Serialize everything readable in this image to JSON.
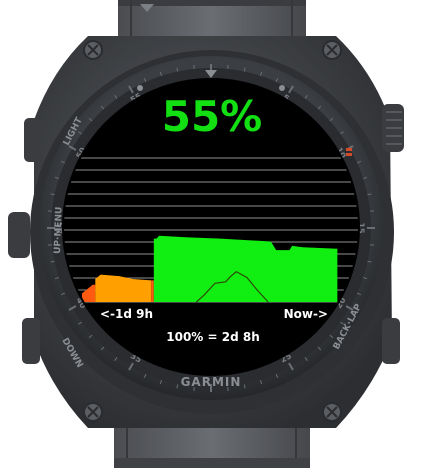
{
  "watch": {
    "brand": "GARMIN",
    "button_labels": {
      "light": "LIGHT",
      "up_menu": "UP·MENU",
      "down": "DOWN",
      "back_lap": "BACK·LAP"
    },
    "bezel_numbers": [
      "5",
      "10",
      "15",
      "20",
      "25",
      "35",
      "40",
      "45",
      "50",
      "55"
    ]
  },
  "screen": {
    "battery_percent_text": "55%",
    "percent_color": "#12e012",
    "left_time_label": "<-1d 9h",
    "right_time_label": "Now->",
    "scale_text": "100% = 2d 8h"
  },
  "chart_data": {
    "type": "area",
    "x_label_left": "<-1d 9h",
    "x_label_right": "Now->",
    "ylim": [
      0,
      100
    ],
    "colors": {
      "low": "#ff5a10",
      "mid": "#ffa000",
      "high": "#11ee11",
      "activity_line": "#2a4a00"
    },
    "grid": true,
    "segments": [
      {
        "color": "low",
        "points": [
          [
            0,
            6
          ],
          [
            0.04,
            12
          ],
          [
            0.05,
            12
          ]
        ]
      },
      {
        "color": "mid",
        "points": [
          [
            0.05,
            16
          ],
          [
            0.07,
            19
          ],
          [
            0.14,
            18
          ],
          [
            0.19,
            16
          ],
          [
            0.26,
            15
          ]
        ]
      },
      {
        "color": "low",
        "points": [
          [
            0.26,
            15
          ],
          [
            0.27,
            15
          ]
        ]
      },
      {
        "color": "high",
        "points": [
          [
            0.27,
            44
          ],
          [
            0.28,
            44
          ],
          [
            0.29,
            46
          ],
          [
            0.39,
            45
          ],
          [
            0.52,
            44
          ],
          [
            0.71,
            42
          ],
          [
            0.73,
            36
          ],
          [
            0.78,
            36
          ],
          [
            0.79,
            39
          ],
          [
            0.83,
            38
          ],
          [
            0.96,
            37
          ],
          [
            0.96,
            0
          ]
        ]
      }
    ],
    "activity_line": [
      [
        0.43,
        0
      ],
      [
        0.46,
        5
      ],
      [
        0.5,
        13
      ],
      [
        0.54,
        14
      ],
      [
        0.56,
        18
      ],
      [
        0.58,
        21
      ],
      [
        0.62,
        17
      ],
      [
        0.66,
        8
      ],
      [
        0.7,
        0
      ]
    ]
  }
}
